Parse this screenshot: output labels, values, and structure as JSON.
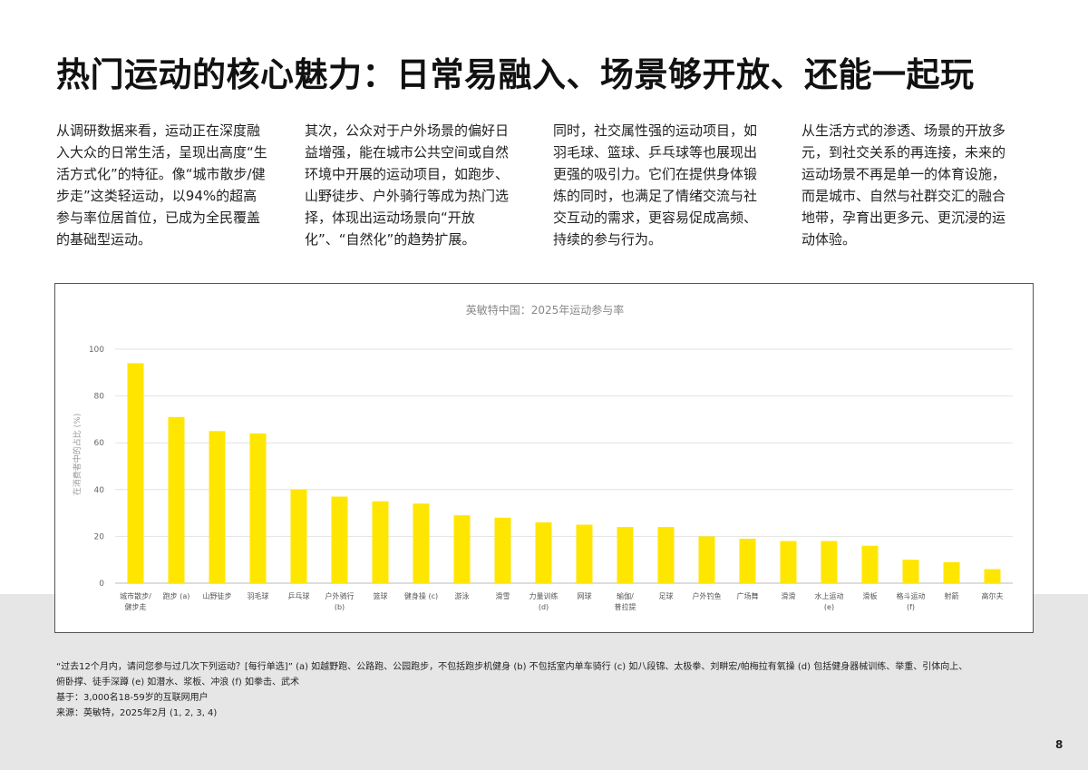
{
  "page": {
    "title": "热门运动的核心魅力：日常易融入、场景够开放、还能一起玩",
    "page_number": "8"
  },
  "intro": {
    "columns": [
      "从调研数据来看，运动正在深度融入大众的日常生活，呈现出高度“生活方式化”的特征。像“城市散步/健步走”这类轻运动，以94%的超高参与率位居首位，已成为全民覆盖的基础型运动。",
      "其次，公众对于户外场景的偏好日益增强，能在城市公共空间或自然环境中开展的运动项目，如跑步、山野徒步、户外骑行等成为热门选择，体现出运动场景向“开放化”、“自然化”的趋势扩展。",
      "同时，社交属性强的运动项目，如羽毛球、篮球、乒乓球等也展现出更强的吸引力。它们在提供身体锻炼的同时，也满足了情绪交流与社交互动的需求，更容易促成高频、持续的参与行为。",
      "从生活方式的渗透、场景的开放多元，到社交关系的再连接，未来的运动场景不再是单一的体育设施，而是城市、自然与社群交汇的融合地带，孕育出更多元、更沉浸的运动体验。"
    ]
  },
  "notes": {
    "lines": [
      "“过去12个月内，请问您参与过几次下列运动？[每行单选]” (a) 如越野跑、公路跑、公园跑步，不包括跑步机健身 (b) 不包括室内单车骑行 (c) 如八段锦、太极拳、刘畊宏/帕梅拉有氧操 (d) 包括健身器械训练、举重、引体向上、",
      "俯卧撑、徒手深蹲 (e) 如潜水、浆板、冲浪 (f) 如拳击、武术",
      "基于：3,000名18-59岁的互联网用户",
      "来源：英敏特，2025年2月 (1, 2, 3, 4)"
    ]
  },
  "chart_data": {
    "type": "bar",
    "title": "英敏特中国：2025年运动参与率",
    "ylabel": "在消费者中的占比 (%)",
    "xlabel": "",
    "ylim": [
      0,
      100
    ],
    "yticks": [
      "0",
      "20",
      "40",
      "60",
      "80",
      "100"
    ],
    "grid": true,
    "bar_color": "#FFE600",
    "categories": [
      [
        "城市散步/",
        "健步走"
      ],
      [
        "跑步 (a)"
      ],
      [
        "山野徒步"
      ],
      [
        "羽毛球"
      ],
      [
        "乒乓球"
      ],
      [
        "户外骑行",
        "(b)"
      ],
      [
        "篮球"
      ],
      [
        "健身操 (c)"
      ],
      [
        "游泳"
      ],
      [
        "滑雪"
      ],
      [
        "力量训练",
        "(d)"
      ],
      [
        "网球"
      ],
      [
        "瑜伽/",
        "普拉提"
      ],
      [
        "足球"
      ],
      [
        "户外钓鱼"
      ],
      [
        "广场舞"
      ],
      [
        "滑滑"
      ],
      [
        "水上运动",
        "(e)"
      ],
      [
        "滑板"
      ],
      [
        "格斗运动",
        "(f)"
      ],
      [
        "射箭"
      ],
      [
        "高尔夫"
      ]
    ],
    "values": [
      94,
      71,
      65,
      64,
      40,
      37,
      35,
      34,
      29,
      28,
      26,
      25,
      24,
      24,
      20,
      19,
      18,
      18,
      16,
      10,
      9,
      6
    ]
  }
}
